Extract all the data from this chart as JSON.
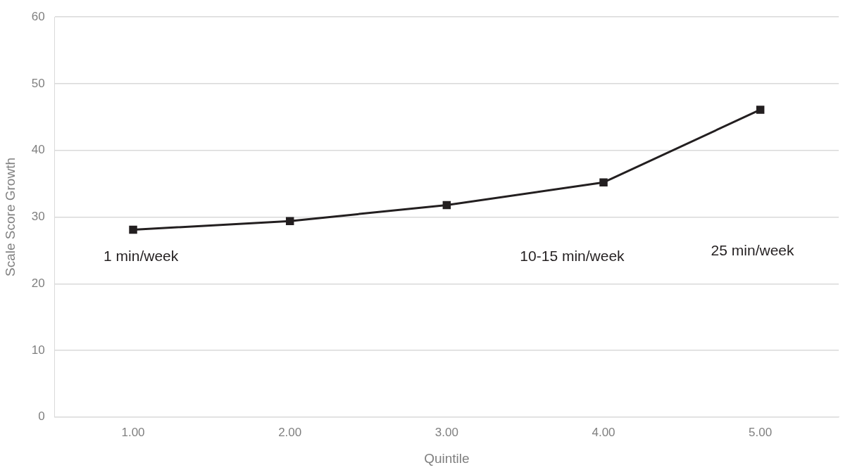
{
  "chart_data": {
    "type": "line",
    "xlabel": "Quintile",
    "ylabel": "Scale Score Growth",
    "categories": [
      "1.00",
      "2.00",
      "3.00",
      "4.00",
      "5.00"
    ],
    "series": [
      {
        "color": "#231f20",
        "values": [
          28.1,
          29.4,
          31.8,
          35.2,
          46.1
        ]
      }
    ],
    "ylim": [
      0,
      60
    ],
    "yticks": [
      0,
      10,
      20,
      30,
      40,
      50,
      60
    ],
    "grid": "y",
    "legend": false,
    "marker": "square",
    "line_style": "solid",
    "annotations": [
      "1 min/week",
      "10-15 min/week",
      "25 min/week"
    ]
  }
}
